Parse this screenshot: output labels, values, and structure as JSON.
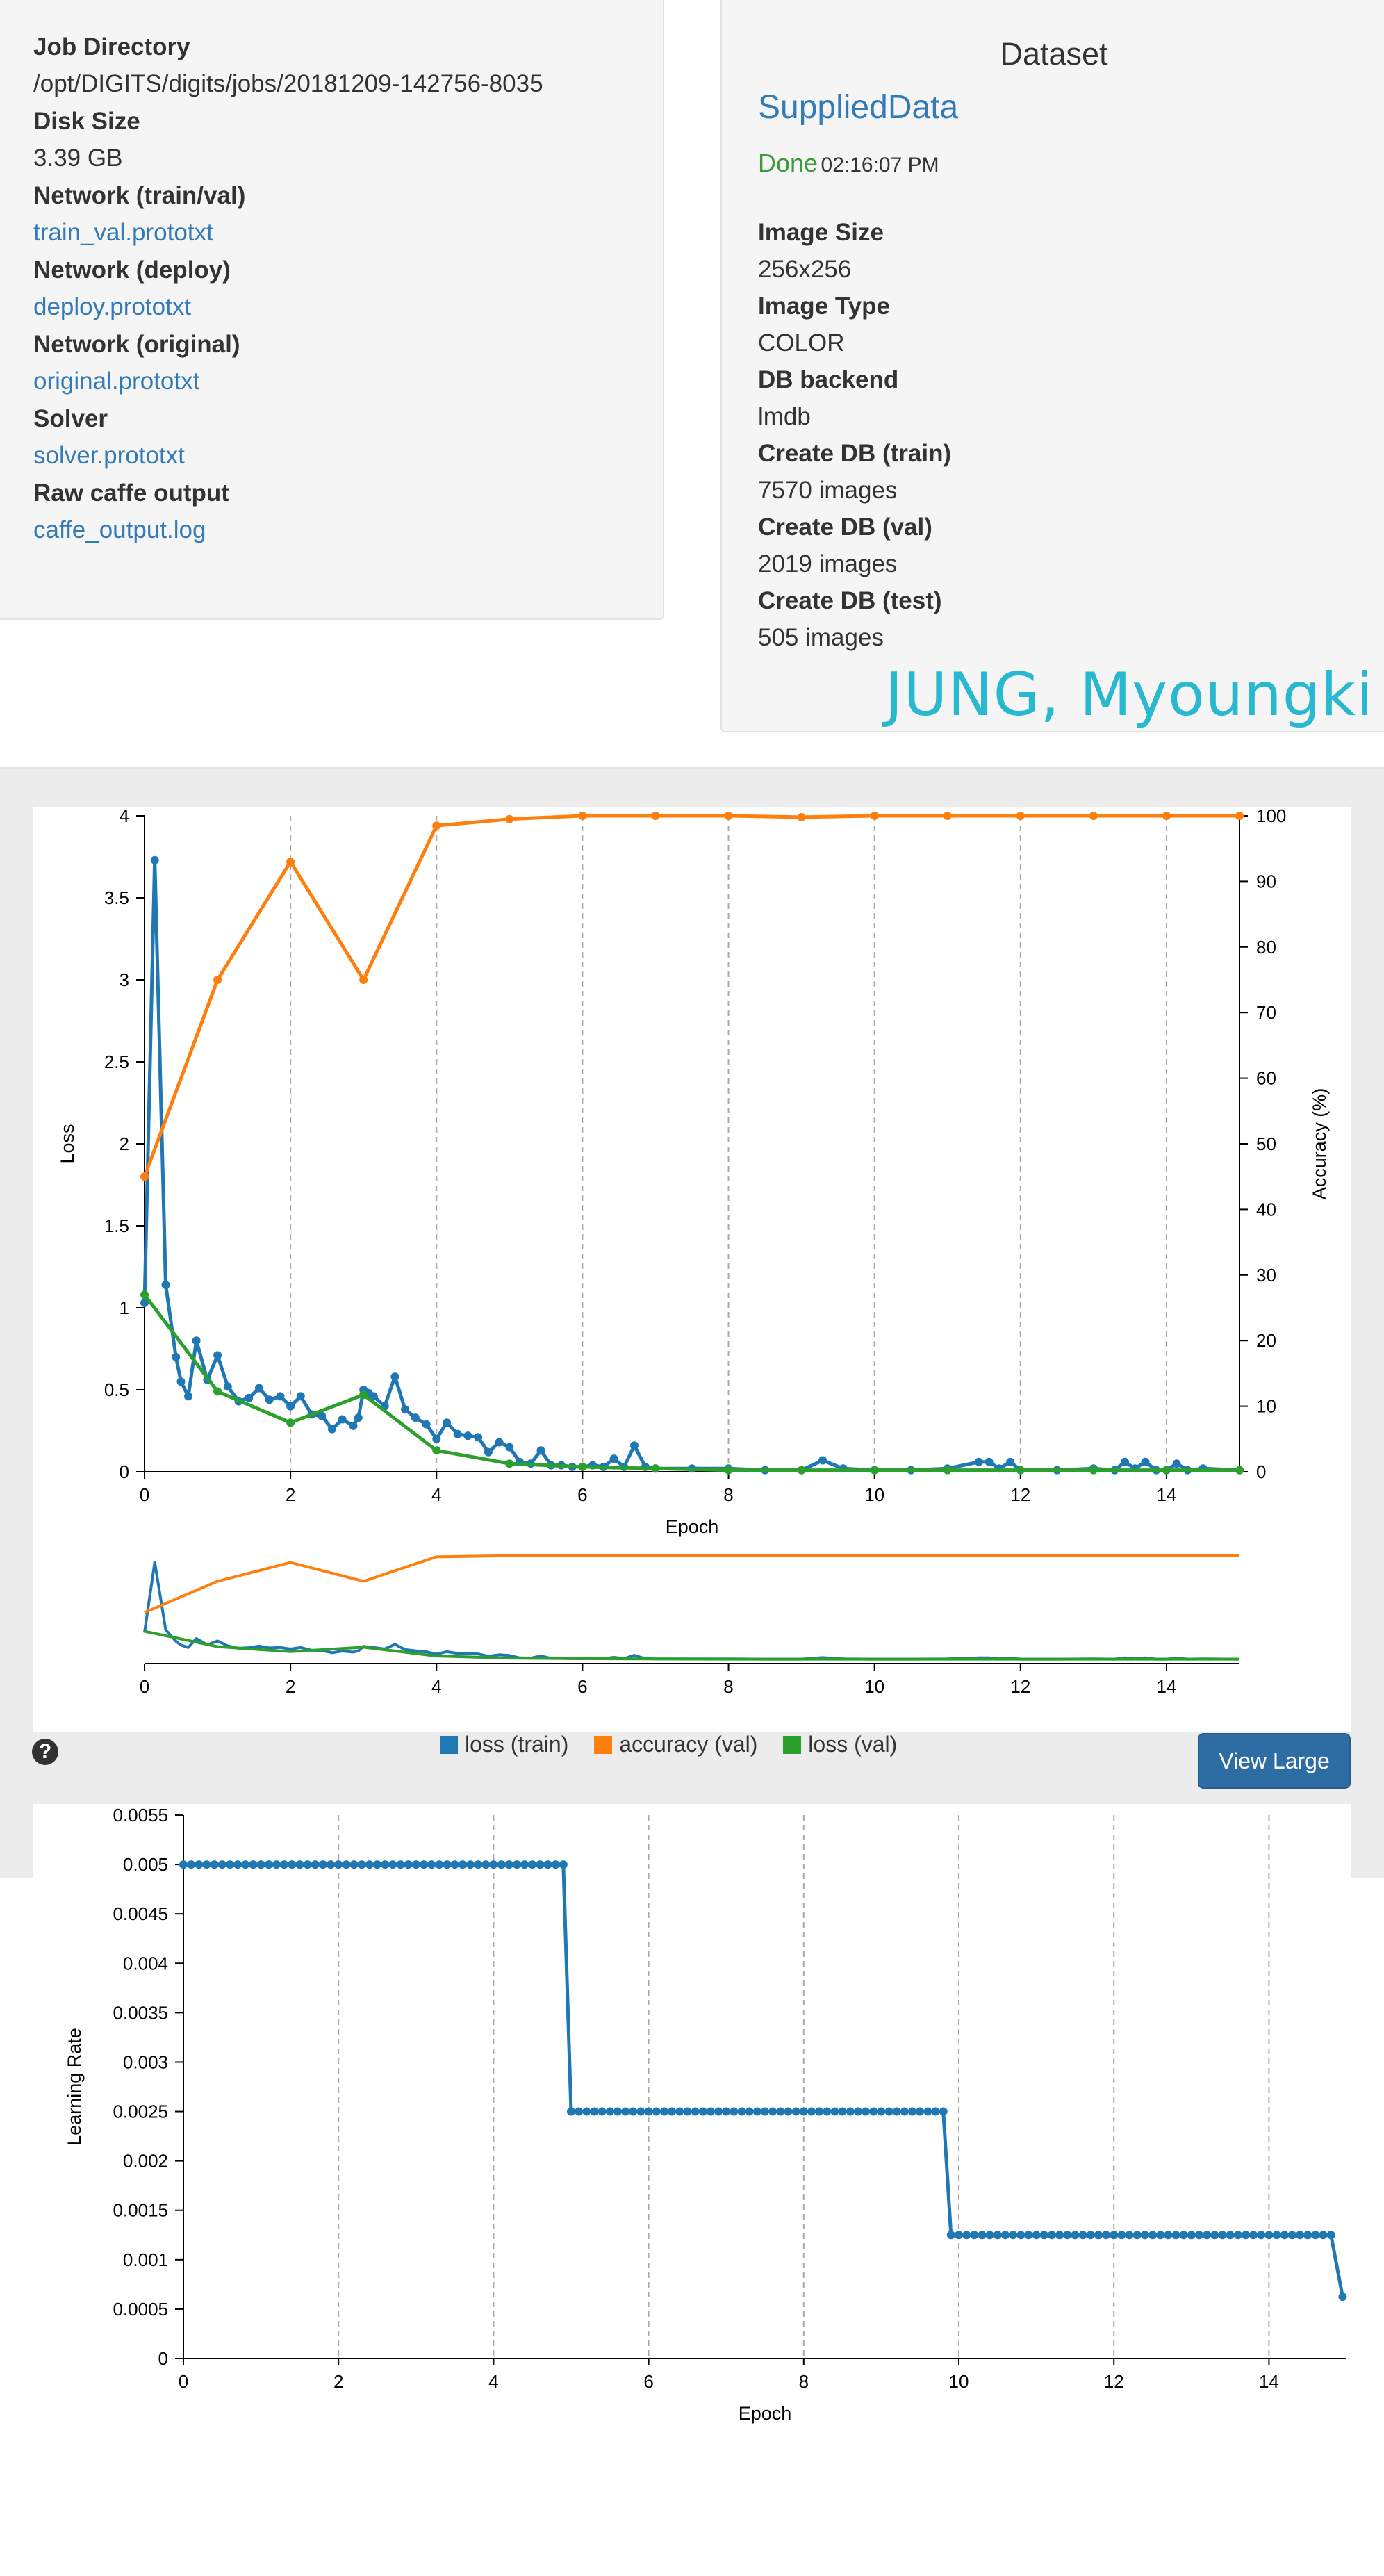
{
  "job": {
    "items": [
      {
        "label": "Job Directory",
        "value": "/opt/DIGITS/digits/jobs/20181209-142756-8035",
        "is_link": false
      },
      {
        "label": "Disk Size",
        "value": "3.39 GB",
        "is_link": false
      },
      {
        "label": "Network (train/val)",
        "value": "train_val.prototxt",
        "is_link": true
      },
      {
        "label": "Network (deploy)",
        "value": "deploy.prototxt",
        "is_link": true
      },
      {
        "label": "Network (original)",
        "value": "original.prototxt",
        "is_link": true
      },
      {
        "label": "Solver",
        "value": "solver.prototxt",
        "is_link": true
      },
      {
        "label": "Raw caffe output",
        "value": "caffe_output.log",
        "is_link": true
      }
    ]
  },
  "dataset": {
    "title": "Dataset",
    "name": "SuppliedData",
    "status": "Done",
    "time": "02:16:07 PM",
    "items": [
      {
        "label": "Image Size",
        "value": "256x256"
      },
      {
        "label": "Image Type",
        "value": "COLOR"
      },
      {
        "label": "DB backend",
        "value": "lmdb"
      },
      {
        "label": "Create DB (train)",
        "value": "7570 images"
      },
      {
        "label": "Create DB (val)",
        "value": "2019 images"
      },
      {
        "label": "Create DB (test)",
        "value": "505 images"
      }
    ]
  },
  "watermark": "JUNG, Myoungki",
  "view_large": "View Large",
  "help_glyph": "?",
  "colors": {
    "loss_train": "#1f77b4",
    "accuracy_val": "#ff7f0e",
    "loss_val": "#2ca02c",
    "link": "#337ab7",
    "done": "#3c9a3c"
  },
  "chart_data": [
    {
      "type": "line",
      "xlabel": "Epoch",
      "ylabel": "Loss",
      "y2label": "Accuracy (%)",
      "xlim": [
        0,
        15
      ],
      "ylim": [
        0,
        4
      ],
      "y2lim": [
        0,
        100
      ],
      "xticks": [
        "0",
        "2",
        "4",
        "6",
        "8",
        "10",
        "12",
        "14"
      ],
      "yticks": [
        "0",
        "0.5",
        "1",
        "1.5",
        "2",
        "2.5",
        "3",
        "3.5",
        "4"
      ],
      "y2ticks": [
        "0",
        "10",
        "20",
        "30",
        "40",
        "50",
        "60",
        "70",
        "80",
        "90",
        "100"
      ],
      "grid_x": true,
      "legend_position": "bottom-center",
      "series": [
        {
          "name": "loss (train)",
          "axis": "y",
          "x": [
            0,
            0.14,
            0.29,
            0.43,
            0.5,
            0.6,
            0.71,
            0.86,
            1.0,
            1.14,
            1.29,
            1.43,
            1.57,
            1.71,
            1.86,
            2.0,
            2.14,
            2.29,
            2.43,
            2.57,
            2.71,
            2.86,
            2.93,
            3.0,
            3.07,
            3.14,
            3.29,
            3.43,
            3.57,
            3.71,
            3.86,
            4.0,
            4.14,
            4.29,
            4.43,
            4.57,
            4.71,
            4.86,
            5.0,
            5.14,
            5.29,
            5.43,
            5.57,
            5.71,
            5.86,
            6.0,
            6.14,
            6.29,
            6.43,
            6.57,
            6.71,
            6.86,
            7.0,
            7.5,
            8.0,
            8.5,
            9.0,
            9.29,
            9.57,
            10.0,
            10.5,
            11.0,
            11.43,
            11.57,
            11.71,
            11.86,
            12.0,
            12.5,
            13.0,
            13.29,
            13.43,
            13.57,
            13.71,
            13.86,
            14.0,
            14.14,
            14.29,
            14.5,
            15.0
          ],
          "values": [
            1.03,
            3.73,
            1.14,
            0.7,
            0.55,
            0.46,
            0.8,
            0.56,
            0.71,
            0.52,
            0.43,
            0.45,
            0.51,
            0.44,
            0.46,
            0.4,
            0.46,
            0.35,
            0.34,
            0.26,
            0.32,
            0.28,
            0.33,
            0.5,
            0.48,
            0.46,
            0.4,
            0.58,
            0.38,
            0.33,
            0.29,
            0.2,
            0.3,
            0.23,
            0.22,
            0.21,
            0.12,
            0.18,
            0.15,
            0.06,
            0.05,
            0.13,
            0.04,
            0.04,
            0.03,
            0.03,
            0.04,
            0.03,
            0.08,
            0.03,
            0.16,
            0.03,
            0.02,
            0.02,
            0.02,
            0.01,
            0.01,
            0.07,
            0.02,
            0.01,
            0.01,
            0.02,
            0.06,
            0.06,
            0.02,
            0.06,
            0.01,
            0.01,
            0.02,
            0.01,
            0.06,
            0.02,
            0.06,
            0.01,
            0.01,
            0.05,
            0.01,
            0.02,
            0.01
          ]
        },
        {
          "name": "accuracy (val)",
          "axis": "y2",
          "x": [
            0,
            1,
            2,
            3,
            4,
            5,
            6,
            7,
            8,
            9,
            10,
            11,
            12,
            13,
            14,
            15
          ],
          "values": [
            45,
            75,
            93,
            75,
            98.5,
            99.5,
            100,
            100,
            100,
            99.8,
            100,
            100,
            100,
            100,
            100,
            100
          ]
        },
        {
          "name": "loss (val)",
          "axis": "y",
          "x": [
            0,
            1,
            2,
            3,
            4,
            5,
            6,
            7,
            8,
            9,
            10,
            11,
            12,
            13,
            14,
            15
          ],
          "values": [
            1.08,
            0.49,
            0.3,
            0.47,
            0.13,
            0.05,
            0.03,
            0.02,
            0.01,
            0.01,
            0.01,
            0.01,
            0.01,
            0.01,
            0.01,
            0.01
          ]
        }
      ]
    },
    {
      "type": "line",
      "role": "range-overview",
      "xlim": [
        0,
        15
      ],
      "xticks": [
        "0",
        "2",
        "4",
        "6",
        "8",
        "10",
        "12",
        "14"
      ],
      "series_ref": [
        "loss (train)",
        "accuracy (val)",
        "loss (val)"
      ]
    },
    {
      "type": "line",
      "xlabel": "Epoch",
      "ylabel": "Learning Rate",
      "xlim": [
        0,
        15
      ],
      "ylim": [
        0,
        0.0055
      ],
      "xticks": [
        "0",
        "2",
        "4",
        "6",
        "8",
        "10",
        "12",
        "14"
      ],
      "yticks": [
        "0",
        "0.0005",
        "0.001",
        "0.0015",
        "0.002",
        "0.0025",
        "0.003",
        "0.0035",
        "0.004",
        "0.0045",
        "0.005",
        "0.0055"
      ],
      "grid_x": true,
      "series": [
        {
          "name": "",
          "segments": [
            {
              "x_start": 0,
              "x_end": 4.9,
              "value": 0.005
            },
            {
              "x_start": 5.0,
              "x_end": 9.8,
              "value": 0.0025
            },
            {
              "x_start": 9.9,
              "x_end": 14.8,
              "value": 0.00125
            }
          ],
          "last_point": {
            "x": 14.95,
            "value": 0.000625
          }
        }
      ]
    }
  ]
}
